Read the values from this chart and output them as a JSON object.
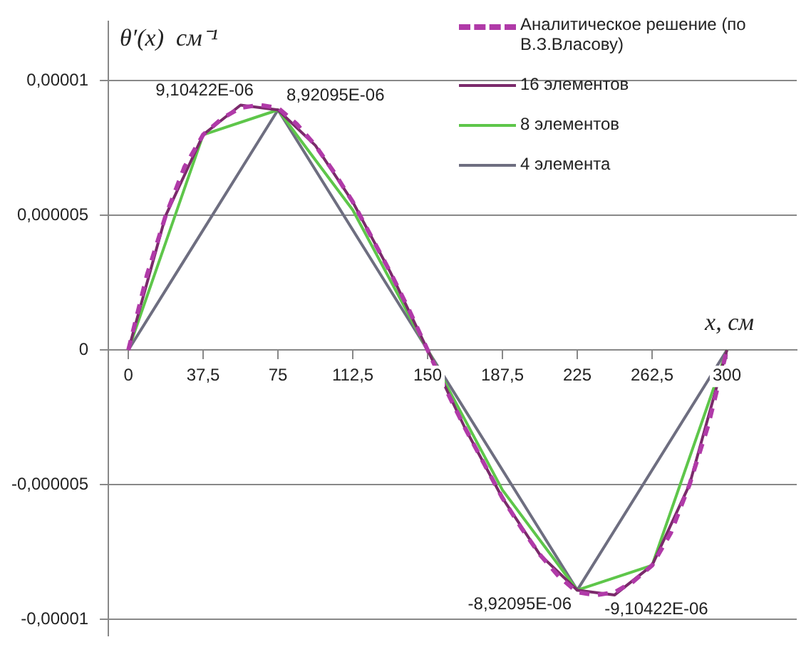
{
  "chart_data": {
    "type": "line",
    "xlabel": "x, см",
    "ylabel": "θ′(x)  см⁻¹",
    "xlim": [
      -10,
      335
    ],
    "xticks": [
      0,
      {
        "value": 37.5,
        "label": "37,5"
      },
      75,
      {
        "value": 112.5,
        "label": "112,5"
      },
      150,
      {
        "value": 187.5,
        "label": "187,5"
      },
      225,
      {
        "value": 262.5,
        "label": "262,5"
      },
      300
    ],
    "ylim": [
      -1.06e-05,
      1.22e-05
    ],
    "yticks": [
      {
        "value": -1e-05,
        "label": "-0,00001"
      },
      {
        "value": -5e-06,
        "label": "-0,000005"
      },
      0,
      {
        "value": 5e-06,
        "label": "0,000005"
      },
      {
        "value": 1e-05,
        "label": "0,00001"
      }
    ],
    "grid": "y",
    "legend": "top right",
    "series": [
      {
        "name": "Аналитическое решение (по В.З.Власову)",
        "color": "#b03aa8",
        "line_style": "dashed",
        "x": [
          0,
          9.375,
          18.75,
          28.125,
          37.5,
          46.875,
          56.25,
          65.625,
          75,
          84.375,
          93.75,
          103.125,
          112.5,
          121.875,
          131.25,
          140.625,
          150,
          159.375,
          168.75,
          178.125,
          187.5,
          196.875,
          206.25,
          215.625,
          225,
          234.375,
          243.75,
          253.125,
          262.5,
          271.875,
          281.25,
          290.625,
          300
        ],
        "values": [
          0,
          2.8e-06,
          5e-06,
          6.8e-06,
          8e-06,
          8.6e-06,
          9e-06,
          9.10422e-06,
          9e-06,
          8.4e-06,
          7.6e-06,
          6.6e-06,
          5.5e-06,
          4.2e-06,
          2.9e-06,
          1.5e-06,
          0,
          -1.5e-06,
          -2.9e-06,
          -4.2e-06,
          -5.5e-06,
          -6.6e-06,
          -7.6e-06,
          -8.4e-06,
          -9e-06,
          -9.10422e-06,
          -9e-06,
          -8.6e-06,
          -8e-06,
          -6.8e-06,
          -5e-06,
          -2.8e-06,
          0
        ]
      },
      {
        "name": "16 элементов",
        "color": "#7b2a6b",
        "line_style": "solid",
        "x": [
          0,
          18.75,
          37.5,
          56.25,
          75,
          93.75,
          112.5,
          131.25,
          150,
          168.75,
          187.5,
          206.25,
          225,
          243.75,
          262.5,
          281.25,
          300
        ],
        "values": [
          0,
          5e-06,
          8e-06,
          9.1e-06,
          8.92095e-06,
          7.6e-06,
          5.5e-06,
          2.9e-06,
          0,
          -2.9e-06,
          -5.5e-06,
          -7.6e-06,
          -8.92095e-06,
          -9.1e-06,
          -8e-06,
          -5e-06,
          0
        ]
      },
      {
        "name": "8 элементов",
        "color": "#5ec64a",
        "line_style": "solid",
        "x": [
          0,
          37.5,
          75,
          112.5,
          150,
          187.5,
          225,
          262.5,
          300
        ],
        "values": [
          0,
          8e-06,
          8.92095e-06,
          5.2e-06,
          0,
          -5.2e-06,
          -8.92095e-06,
          -8e-06,
          0
        ]
      },
      {
        "name": "4 элемента",
        "color": "#6e6e80",
        "line_style": "solid",
        "x": [
          0,
          75,
          150,
          225,
          300
        ],
        "values": [
          0,
          8.92095e-06,
          0,
          -8.92095e-06,
          0
        ]
      }
    ],
    "annotations": [
      {
        "text": "9,10422E-06",
        "x": 65.625,
        "y": 9.10422e-06
      },
      {
        "text": "8,92095E-06",
        "x": 75,
        "y": 8.92095e-06
      },
      {
        "text": "-8,92095E-06",
        "x": 225,
        "y": -8.92095e-06
      },
      {
        "text": "-9,10422E-06",
        "x": 234.375,
        "y": -9.10422e-06
      }
    ]
  }
}
